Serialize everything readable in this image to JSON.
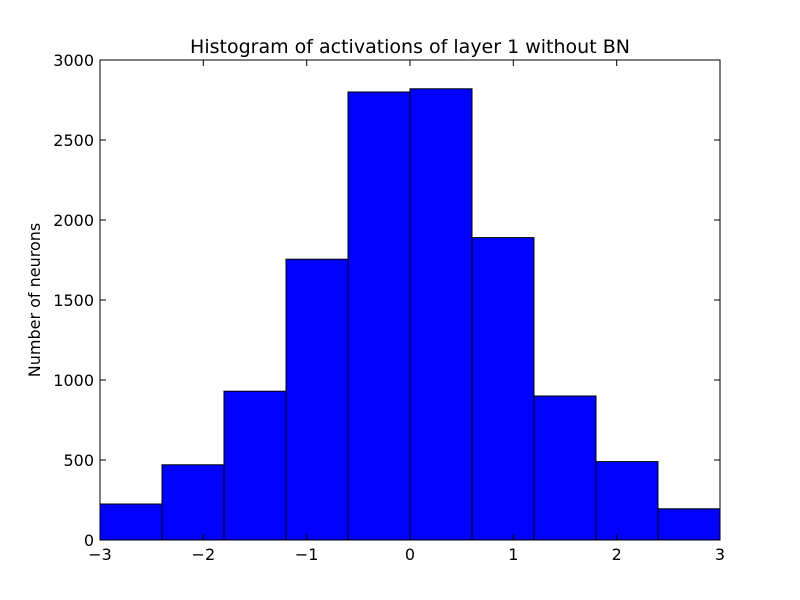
{
  "chart_data": {
    "type": "bar",
    "title": "Histogram of activations of layer 1  without BN",
    "xlabel": "",
    "ylabel": "Number of neurons",
    "xlim": [
      -3,
      3
    ],
    "ylim": [
      0,
      3000
    ],
    "grid": false,
    "bin_edges": [
      -3,
      -2.4,
      -1.8,
      -1.2,
      -0.6,
      0,
      0.6,
      1.2,
      1.8,
      2.4,
      3
    ],
    "values": [
      225,
      470,
      930,
      1755,
      2800,
      2820,
      1890,
      900,
      490,
      195
    ],
    "x_ticks": [
      -3,
      -2,
      -1,
      0,
      1,
      2,
      3
    ],
    "x_tick_labels": [
      "−3",
      "−2",
      "−1",
      "0",
      "1",
      "2",
      "3"
    ],
    "y_ticks": [
      0,
      500,
      1000,
      1500,
      2000,
      2500,
      3000
    ],
    "y_tick_labels": [
      "0",
      "500",
      "1000",
      "1500",
      "2000",
      "2500",
      "3000"
    ],
    "bar_color": "#0000ff",
    "edge_color": "#000000"
  }
}
